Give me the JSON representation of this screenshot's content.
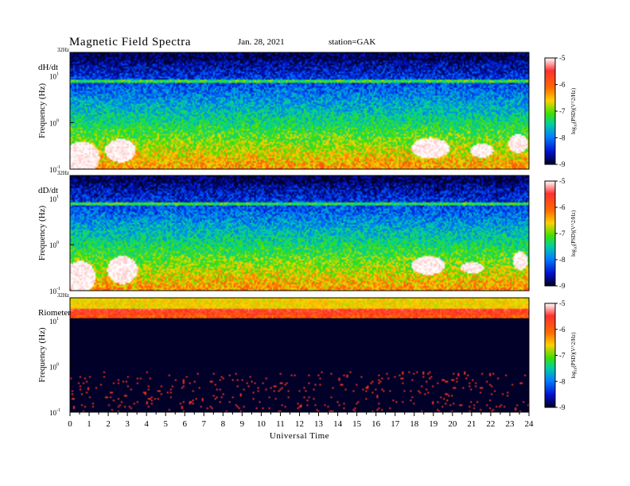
{
  "header": {
    "title": "Magnetic Field Spectra",
    "date": "Jan. 28, 2021",
    "station": "station=GAK"
  },
  "chart_data": {
    "type": "heatmap",
    "title": "Magnetic Field Spectra",
    "xlabel": "Universal Time",
    "x_range": [
      0,
      24
    ],
    "x_ticks": [
      "0",
      "1",
      "2",
      "3",
      "4",
      "5",
      "6",
      "7",
      "8",
      "9",
      "10",
      "11",
      "12",
      "13",
      "14",
      "15",
      "16",
      "17",
      "18",
      "19",
      "20",
      "21",
      "22",
      "23",
      "24"
    ],
    "panels": [
      {
        "name": "dH/dt",
        "ylabel": "Frequency (Hz)",
        "y_scale": "log",
        "y_range": [
          0.1,
          32
        ],
        "y_ticks": [
          {
            "base": "10",
            "exp": "-1"
          },
          {
            "base": "10",
            "exp": "0"
          },
          {
            "base": "10",
            "exp": "1"
          }
        ],
        "top_label": "32Hz",
        "colorbar": {
          "label_prefix": "log",
          "label_sub": "10",
          "label_rest": "(PSD)(V^2/Hz)",
          "range": [
            -9,
            -5
          ],
          "ticks": [
            "-5",
            "-6",
            "-7",
            "-8",
            "-9"
          ]
        }
      },
      {
        "name": "dD/dt",
        "ylabel": "Frequency (Hz)",
        "y_scale": "log",
        "y_range": [
          0.1,
          32
        ],
        "y_ticks": [
          {
            "base": "10",
            "exp": "-1"
          },
          {
            "base": "10",
            "exp": "0"
          },
          {
            "base": "10",
            "exp": "1"
          }
        ],
        "top_label": "32Hz",
        "colorbar": {
          "label_prefix": "log",
          "label_sub": "10",
          "label_rest": "(PSD)(V^2/Hz)",
          "range": [
            -9,
            -5
          ],
          "ticks": [
            "-5",
            "-6",
            "-7",
            "-8",
            "-9"
          ]
        }
      },
      {
        "name": "Riometer",
        "ylabel": "Frequency (Hz)",
        "y_scale": "log",
        "y_range": [
          0.1,
          32
        ],
        "y_ticks": [
          {
            "base": "10",
            "exp": "-1"
          },
          {
            "base": "10",
            "exp": "0"
          },
          {
            "base": "10",
            "exp": "1"
          }
        ],
        "top_label": "32Hz",
        "colorbar": {
          "label_prefix": "log",
          "label_sub": "10",
          "label_rest": "(PSD)(V^2/Hz)",
          "range": [
            -9,
            -5
          ],
          "ticks": [
            "-5",
            "-6",
            "-7",
            "-8",
            "-9"
          ]
        }
      }
    ]
  }
}
